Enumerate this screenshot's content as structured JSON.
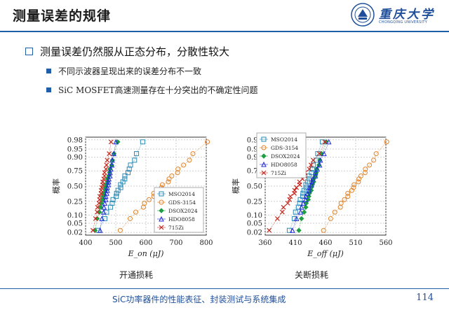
{
  "header": {
    "title": "测量误差的规律"
  },
  "logo": {
    "name_cn": "重庆大学",
    "name_en": "CHONGQING UNIVERSITY"
  },
  "bullets": {
    "main": "测量误差仍然服从正态分布，分散性较大",
    "items": [
      "不同示波器呈现出来的误差分布不一致",
      "SiC MOSFET高速测量存在十分突出的不确定性问题"
    ]
  },
  "captions": {
    "left": "开通损耗",
    "right": "关断损耗"
  },
  "footer": {
    "text": "SiC功率器件的性能表征、封装测试与系统集成",
    "page": "114"
  },
  "colors": {
    "accent": "#1f5fa8",
    "MSO2014": "#2a8ab5",
    "GDS-3154": "#e0832a",
    "DSOX2024": "#1e9e45",
    "HDO8058": "#1f2bd6",
    "715Zi": "#c4281e"
  },
  "chart_data": [
    {
      "type": "scatter",
      "title": "开通损耗",
      "xlabel": "E_on (μJ)",
      "ylabel": "概率",
      "xlim": [
        400,
        800
      ],
      "xticks": [
        "400",
        "500",
        "600",
        "700",
        "800"
      ],
      "yscale": "normal-probability",
      "yticks": [
        "0.02",
        "0.05",
        "0.10",
        "0.25",
        "0.50",
        "0.75",
        "0.90",
        "0.95",
        "0.98"
      ],
      "grid": true,
      "legend": "bottom-right",
      "series": [
        {
          "name": "MSO2014",
          "marker": "square",
          "range": [
            442,
            590
          ]
        },
        {
          "name": "GDS-3154",
          "marker": "circle",
          "range": [
            510,
            800
          ]
        },
        {
          "name": "DSOX2024",
          "marker": "diamond",
          "range": [
            430,
            505
          ]
        },
        {
          "name": "HDO8058",
          "marker": "triangle",
          "range": [
            448,
            500
          ]
        },
        {
          "name": "715Zi",
          "marker": "cross",
          "range": [
            425,
            485
          ]
        }
      ]
    },
    {
      "type": "scatter",
      "title": "关断损耗",
      "xlabel": "E_off (μJ)",
      "ylabel": "概率",
      "xlim": [
        360,
        560
      ],
      "xticks": [
        "360",
        "410",
        "460",
        "510",
        "560"
      ],
      "yscale": "normal-probability",
      "yticks": [
        "0.02",
        "0.05",
        "0.10",
        "0.25",
        "0.50",
        "0.75",
        "0.90",
        "0.95",
        "0.98"
      ],
      "grid": true,
      "legend": "top-left",
      "series": [
        {
          "name": "MSO2014",
          "marker": "square",
          "range": [
            400,
            455
          ]
        },
        {
          "name": "GDS-3154",
          "marker": "circle",
          "range": [
            455,
            560
          ]
        },
        {
          "name": "DSOX2024",
          "marker": "diamond",
          "range": [
            415,
            460
          ]
        },
        {
          "name": "HDO8058",
          "marker": "triangle",
          "range": [
            405,
            465
          ]
        },
        {
          "name": "715Zi",
          "marker": "cross",
          "range": [
            368,
            460
          ]
        }
      ]
    }
  ]
}
